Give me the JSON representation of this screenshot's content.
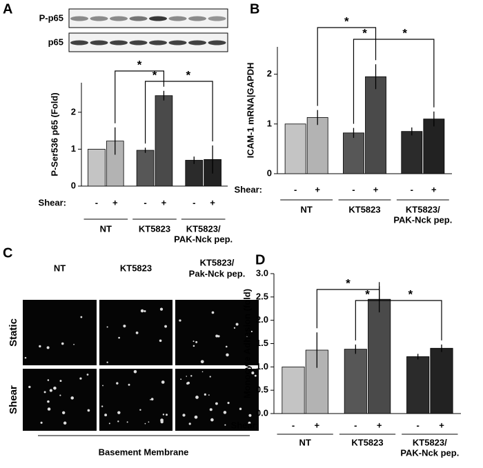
{
  "panel_labels": [
    "A",
    "B",
    "C",
    "D"
  ],
  "blot": {
    "rows": [
      "P-p65",
      "p65"
    ]
  },
  "micrograph": {
    "columns": [
      [
        "NT"
      ],
      [
        "KT5823"
      ],
      [
        "KT5823/",
        "Pak-Nck pep."
      ]
    ],
    "rows": [
      "Static",
      "Shear"
    ],
    "caption": "Basement Membrane"
  },
  "chart_data": [
    {
      "type": "bar",
      "ylabel": "P-Ser536 p65 (Fold)",
      "categories": [
        "-",
        "+",
        "-",
        "+",
        "-",
        "+"
      ],
      "shear_label": "Shear:",
      "groups": [
        [
          "NT"
        ],
        [
          "KT5823"
        ],
        [
          "KT5823/",
          "PAK-Nck pep."
        ]
      ],
      "values": [
        1.0,
        1.22,
        0.97,
        2.45,
        0.7,
        0.72
      ],
      "errors": [
        0,
        0.37,
        0.07,
        0.13,
        0.1,
        0.38
      ],
      "colors": [
        "#c4c4c4",
        "#b3b3b3",
        "#575757",
        "#4a4a4a",
        "#2b2b2b",
        "#222222"
      ],
      "ylim": [
        0,
        2.8
      ],
      "yticks": [
        0,
        1,
        2
      ],
      "annotations": [
        "*",
        "*",
        "*"
      ]
    },
    {
      "type": "bar",
      "ylabel": "ICAM-1 mRNA|GAPDH",
      "categories": [
        "-",
        "+",
        "-",
        "+",
        "-",
        "+"
      ],
      "shear_label": "Shear:",
      "groups": [
        [
          "NT"
        ],
        [
          "KT5823"
        ],
        [
          "KT5823/",
          "PAK-Nck pep."
        ]
      ],
      "values": [
        1.0,
        1.13,
        0.82,
        1.95,
        0.85,
        1.1
      ],
      "errors": [
        0,
        0.15,
        0.1,
        0.25,
        0.08,
        0.15
      ],
      "colors": [
        "#c4c4c4",
        "#b3b3b3",
        "#575757",
        "#4a4a4a",
        "#2b2b2b",
        "#222222"
      ],
      "ylim": [
        0,
        2.55
      ],
      "yticks": [
        0,
        1,
        2
      ],
      "annotations": [
        "*",
        "*",
        "*"
      ]
    },
    {
      "type": "bar",
      "ylabel": "Monocyte Adhesion (fold)",
      "categories": [
        "-",
        "+",
        "-",
        "+",
        "-",
        "+"
      ],
      "shear_label": "Shear:",
      "groups": [
        [
          "NT"
        ],
        [
          "KT5823"
        ],
        [
          "KT5823/",
          "PAK-Nck pep."
        ]
      ],
      "values": [
        1.0,
        1.36,
        1.38,
        2.45,
        1.22,
        1.4
      ],
      "errors": [
        0,
        0.38,
        0.1,
        0.28,
        0.06,
        0.08
      ],
      "colors": [
        "#c4c4c4",
        "#b3b3b3",
        "#575757",
        "#4a4a4a",
        "#2b2b2b",
        "#222222"
      ],
      "ylim": [
        0,
        3.0
      ],
      "yticks": [
        {
          "value": 0,
          "label": "0.0"
        },
        {
          "value": 0.5,
          "label": "0.5"
        },
        {
          "value": 1,
          "label": "1.0"
        },
        {
          "value": 1.5,
          "label": "1.5"
        },
        {
          "value": 2,
          "label": "2.0"
        },
        {
          "value": 2.5,
          "label": "2.5"
        },
        {
          "value": 3,
          "label": "3.0"
        }
      ],
      "annotations": [
        "*",
        "*",
        "*"
      ]
    }
  ]
}
